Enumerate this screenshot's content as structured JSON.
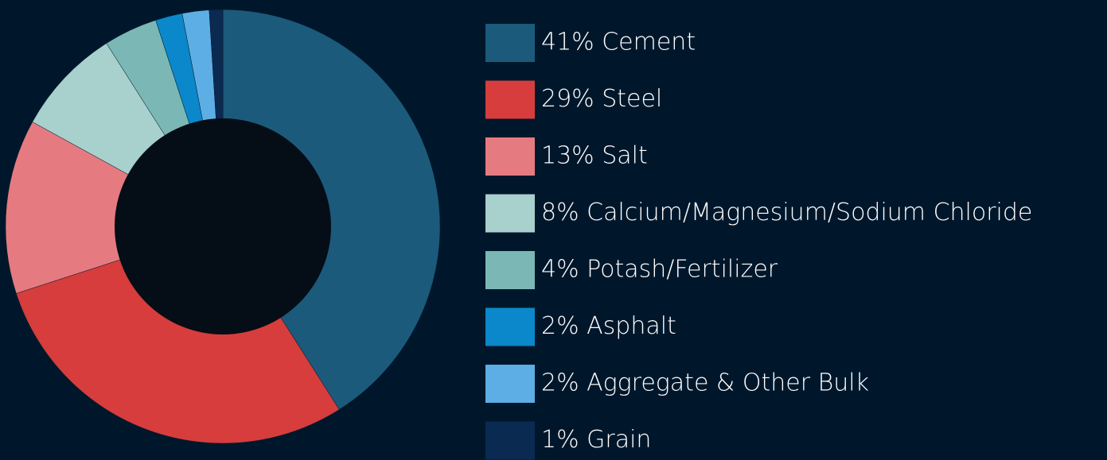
{
  "chart_data": {
    "type": "donut",
    "categories": [
      "41% Cement",
      "29% Steel",
      "13% Salt",
      "8% Calcium/Magnesium/Sodium Chloride",
      "4% Potash/Fertilizer",
      "2% Asphalt",
      "2% Aggregate & Other Bulk",
      "1% Grain"
    ],
    "values": [
      41,
      29,
      13,
      8,
      4,
      2,
      2,
      1
    ],
    "colors": [
      "#1b5a7b",
      "#d63d3c",
      "#e57b80",
      "#a8d0cd",
      "#7bb7b5",
      "#0a88cb",
      "#5daee4",
      "#0b2a52"
    ]
  }
}
